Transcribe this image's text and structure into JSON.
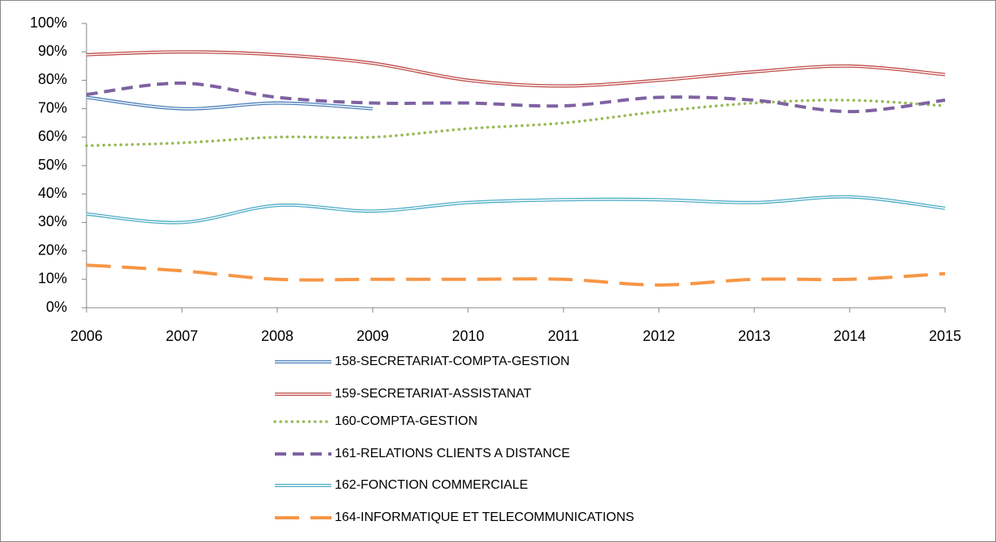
{
  "chart_data": {
    "type": "line",
    "x": [
      2006,
      2007,
      2008,
      2009,
      2010,
      2011,
      2012,
      2013,
      2014,
      2015
    ],
    "xlim": [
      2006,
      2015
    ],
    "xticks": [
      2006,
      2007,
      2008,
      2009,
      2010,
      2011,
      2012,
      2013,
      2014,
      2015
    ],
    "ylim": [
      0,
      100
    ],
    "yticks": [
      {
        "value": 0,
        "label": "0%"
      },
      {
        "value": 10,
        "label": "10%"
      },
      {
        "value": 20,
        "label": "20%"
      },
      {
        "value": 30,
        "label": "30%"
      },
      {
        "value": 40,
        "label": "40%"
      },
      {
        "value": 50,
        "label": "50%"
      },
      {
        "value": 60,
        "label": "60%"
      },
      {
        "value": 70,
        "label": "70%"
      },
      {
        "value": 80,
        "label": "80%"
      },
      {
        "value": 90,
        "label": "90%"
      },
      {
        "value": 100,
        "label": "100%"
      }
    ],
    "legend": "bottom",
    "series": [
      {
        "name": "158-SECRETARIAT-COMPTA-GESTION",
        "color": "#4a7ebb",
        "style": "double",
        "values": [
          74,
          70,
          72,
          70,
          null,
          null,
          null,
          null,
          null,
          null
        ]
      },
      {
        "name": "159-SECRETARIAT-ASSISTANAT",
        "color": "#be4b48",
        "style": "double",
        "values": [
          89,
          90,
          89,
          86,
          80,
          78,
          80,
          83,
          85,
          82
        ]
      },
      {
        "name": "160-COMPTA-GESTION",
        "color": "#98b954",
        "style": "dotted",
        "values": [
          57,
          58,
          60,
          60,
          63,
          65,
          69,
          72,
          73,
          71
        ]
      },
      {
        "name": "161-RELATIONS CLIENTS A DISTANCE",
        "color": "#7e62a1",
        "style": "dashed",
        "values": [
          75,
          79,
          74,
          72,
          72,
          71,
          74,
          73,
          69,
          73
        ]
      },
      {
        "name": "162-FONCTION COMMERCIALE",
        "color": "#4bacc6",
        "style": "double",
        "values": [
          33,
          30,
          36,
          34,
          37,
          38,
          38,
          37,
          39,
          35
        ]
      },
      {
        "name": "164-INFORMATIQUE ET TELECOMMUNICATIONS",
        "color": "#f79646",
        "style": "longdash",
        "values": [
          15,
          13,
          10,
          10,
          10,
          10,
          8,
          10,
          10,
          12
        ]
      }
    ]
  }
}
